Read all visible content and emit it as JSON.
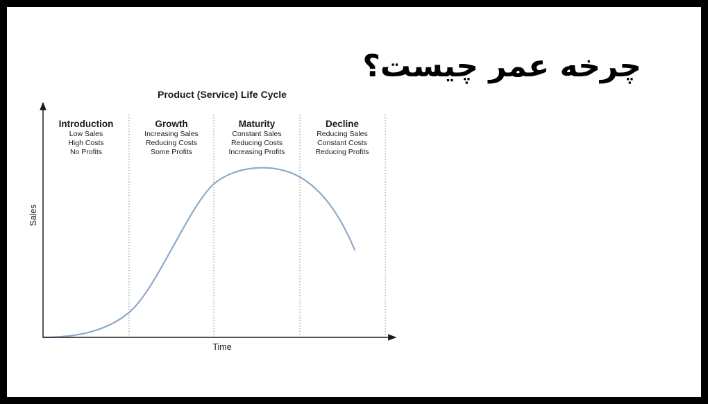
{
  "slide": {
    "title": "چرخه عمر چیست؟"
  },
  "diagram": {
    "title": "Product (Service) Life Cycle",
    "x_axis_label": "Time",
    "y_axis_label": "Sales",
    "curve_color": "#8fa9c8",
    "axis_color": "#1a1a1a",
    "stages": [
      {
        "name": "Introduction",
        "lines": [
          "Low Sales",
          "High Costs",
          "No Profits"
        ]
      },
      {
        "name": "Growth",
        "lines": [
          "Increasing Sales",
          "Reducing Costs",
          "Some Profits"
        ]
      },
      {
        "name": "Maturity",
        "lines": [
          "Constant Sales",
          "Reducing Costs",
          "Increasing Profits"
        ]
      },
      {
        "name": "Decline",
        "lines": [
          "Reducing Sales",
          "Constant Costs",
          "Reducing Profits"
        ]
      }
    ]
  }
}
